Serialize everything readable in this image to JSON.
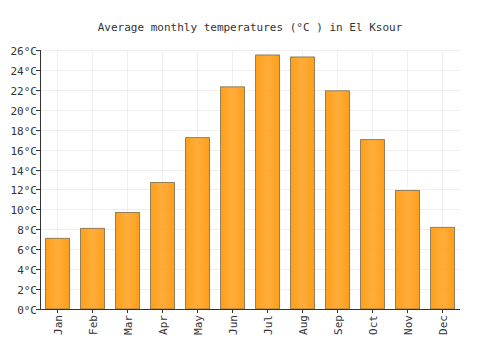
{
  "chart_data": {
    "type": "bar",
    "title": "Average monthly temperatures (°C ) in El Ksour",
    "categories": [
      "Jan",
      "Feb",
      "Mar",
      "Apr",
      "May",
      "Jun",
      "Jul",
      "Aug",
      "Sep",
      "Oct",
      "Nov",
      "Dec"
    ],
    "values": [
      7.1,
      8.1,
      9.7,
      12.7,
      17.2,
      22.3,
      25.5,
      25.3,
      21.9,
      17.0,
      11.9,
      8.2
    ],
    "color": "#ff9f1a",
    "ylim": [
      0,
      26
    ],
    "yticks": [
      {
        "value": 0,
        "label": "0°C"
      },
      {
        "value": 2,
        "label": "2°C"
      },
      {
        "value": 4,
        "label": "4°C"
      },
      {
        "value": 6,
        "label": "6°C"
      },
      {
        "value": 8,
        "label": "8°C"
      },
      {
        "value": 10,
        "label": "10°C"
      },
      {
        "value": 12,
        "label": "12°C"
      },
      {
        "value": 14,
        "label": "14°C"
      },
      {
        "value": 16,
        "label": "16°C"
      },
      {
        "value": 18,
        "label": "18°C"
      },
      {
        "value": 20,
        "label": "20°C"
      },
      {
        "value": 22,
        "label": "22°C"
      },
      {
        "value": 24,
        "label": "24°C"
      },
      {
        "value": 26,
        "label": "26°C"
      }
    ],
    "grid": true
  }
}
